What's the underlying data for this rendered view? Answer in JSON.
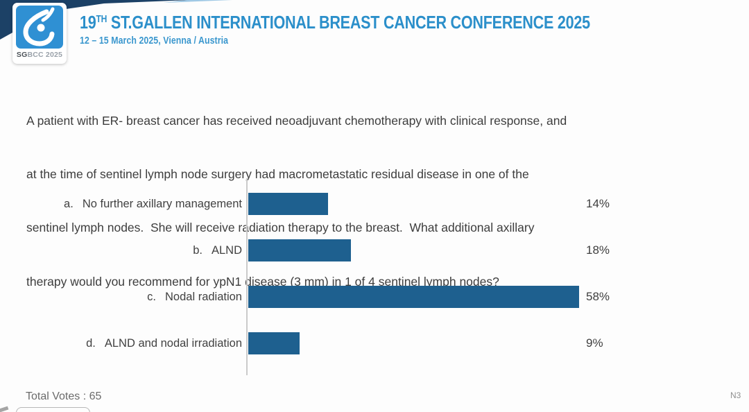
{
  "header": {
    "banner_colors": {
      "navy": "#1c4166",
      "light_tip": "#8fc0e0"
    },
    "logo": {
      "icon": "sgbcc-stylized-breast-icon",
      "square_color": "#2f90d3",
      "caption_bold": "SG",
      "caption_rest": "BCC 2025"
    },
    "title_number": "19",
    "title_ordinal": "TH",
    "title_text": " ST.GALLEN INTERNATIONAL BREAST CANCER CONFERENCE 2025",
    "subtitle": "12 – 15 March 2025, Vienna / Austria",
    "accent_color": "#2b8fca"
  },
  "question": {
    "lines": [
      "A patient with ER- breast cancer has received neoadjuvant chemotherapy with clinical response, and",
      "at the time of sentinel lymph node surgery had macrometastatic residual disease in one of the",
      "sentinel lymph nodes.  She will receive radiation therapy to the breast.  What additional axillary",
      "therapy would you recommend for ypN1 disease (3 mm) in 1 of 4 sentinel lymph nodes?"
    ]
  },
  "chart_data": {
    "type": "bar",
    "orientation": "horizontal",
    "title": "",
    "categories": [
      "a. No further axillary management",
      "b. ALND",
      "c. Nodal radiation",
      "d. ALND and nodal irradiation"
    ],
    "option_letters": [
      "a.",
      "b.",
      "c.",
      "d."
    ],
    "option_labels": [
      "No further axillary management",
      "ALND",
      "Nodal radiation",
      "ALND and nodal irradiation"
    ],
    "values": [
      14,
      18,
      58,
      9
    ],
    "unit": "%",
    "value_labels": [
      "14%",
      "18%",
      "58%",
      "9%"
    ],
    "bar_color": "#1e608f",
    "axis_color": "#cbcbcb",
    "xlim": [
      0,
      60
    ],
    "gridlines": false,
    "legend": false,
    "total_votes": 65
  },
  "footer": {
    "total_votes_text": "Total Votes : 65",
    "slide_code": "N3"
  }
}
